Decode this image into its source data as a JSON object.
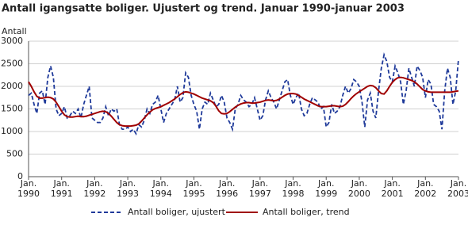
{
  "chart_data": {
    "type": "line",
    "title": "Antall igangsatte boliger. Ujustert og trend. Januar 1990-januar 2003",
    "y_label": "Antall",
    "categories": [
      "Jan. 1990",
      null,
      null,
      null,
      null,
      null,
      null,
      null,
      null,
      null,
      null,
      null,
      "Jan. 1991",
      null,
      null,
      null,
      null,
      null,
      null,
      null,
      null,
      null,
      null,
      null,
      "Jan. 1992",
      null,
      null,
      null,
      null,
      null,
      null,
      null,
      null,
      null,
      null,
      null,
      "Jan. 1993",
      null,
      null,
      null,
      null,
      null,
      null,
      null,
      null,
      null,
      null,
      null,
      "Jan. 1994",
      null,
      null,
      null,
      null,
      null,
      null,
      null,
      null,
      null,
      null,
      null,
      "Jan. 1995",
      null,
      null,
      null,
      null,
      null,
      null,
      null,
      null,
      null,
      null,
      null,
      "Jan. 1996",
      null,
      null,
      null,
      null,
      null,
      null,
      null,
      null,
      null,
      null,
      null,
      "Jan. 1997",
      null,
      null,
      null,
      null,
      null,
      null,
      null,
      null,
      null,
      null,
      null,
      "Jan. 1998",
      null,
      null,
      null,
      null,
      null,
      null,
      null,
      null,
      null,
      null,
      null,
      "Jan. 1999",
      null,
      null,
      null,
      null,
      null,
      null,
      null,
      null,
      null,
      null,
      null,
      "Jan. 2000",
      null,
      null,
      null,
      null,
      null,
      null,
      null,
      null,
      null,
      null,
      null,
      "Jan. 2001",
      null,
      null,
      null,
      null,
      null,
      null,
      null,
      null,
      null,
      null,
      null,
      "Jan. 2002",
      null,
      null,
      null,
      null,
      null,
      null,
      null,
      null,
      null,
      null,
      null,
      "Jan. 2003"
    ],
    "series": [
      {
        "name": "Antall boliger, ujustert",
        "color": "#1f3a9a",
        "dash": true,
        "values": [
          1800,
          1850,
          1600,
          1400,
          1850,
          1900,
          1600,
          2200,
          2450,
          2200,
          1500,
          1350,
          1400,
          1550,
          1300,
          1350,
          1450,
          1400,
          1500,
          1300,
          1600,
          1800,
          2000,
          1300,
          1250,
          1200,
          1200,
          1300,
          1550,
          1350,
          1500,
          1450,
          1500,
          1150,
          1050,
          1050,
          1100,
          1000,
          1050,
          950,
          1150,
          1100,
          1250,
          1500,
          1400,
          1600,
          1650,
          1800,
          1500,
          1200,
          1400,
          1500,
          1600,
          1700,
          2000,
          1650,
          1750,
          2300,
          2200,
          1800,
          1600,
          1450,
          1050,
          1500,
          1650,
          1600,
          1850,
          1700,
          1550,
          1600,
          1800,
          1650,
          1300,
          1200,
          1050,
          1500,
          1600,
          1800,
          1700,
          1650,
          1550,
          1600,
          1750,
          1500,
          1250,
          1350,
          1700,
          1900,
          1750,
          1650,
          1500,
          1700,
          1900,
          2100,
          2150,
          1800,
          1600,
          1750,
          1850,
          1500,
          1350,
          1400,
          1600,
          1750,
          1700,
          1650,
          1500,
          1550,
          1100,
          1200,
          1600,
          1400,
          1450,
          1550,
          1800,
          2000,
          1850,
          1950,
          2150,
          2100,
          2000,
          1650,
          1100,
          1700,
          1850,
          1450,
          1300,
          1900,
          2400,
          2700,
          2550,
          2200,
          2100,
          2450,
          2300,
          2100,
          1600,
          1900,
          2400,
          2200,
          2000,
          2450,
          2350,
          2200,
          1750,
          2150,
          2050,
          1600,
          1550,
          1450,
          1050,
          1900,
          2400,
          2200,
          1600,
          1900,
          2600
        ]
      },
      {
        "name": "Antall boliger, trend",
        "color": "#a00000",
        "dash": false,
        "values": [
          2100,
          2000,
          1880,
          1780,
          1740,
          1740,
          1750,
          1760,
          1750,
          1720,
          1650,
          1550,
          1450,
          1370,
          1330,
          1320,
          1320,
          1330,
          1340,
          1330,
          1330,
          1340,
          1360,
          1380,
          1400,
          1420,
          1440,
          1450,
          1440,
          1400,
          1340,
          1270,
          1200,
          1150,
          1130,
          1120,
          1120,
          1120,
          1130,
          1140,
          1170,
          1230,
          1300,
          1370,
          1430,
          1480,
          1510,
          1530,
          1550,
          1580,
          1610,
          1640,
          1680,
          1720,
          1770,
          1820,
          1860,
          1880,
          1870,
          1850,
          1830,
          1800,
          1770,
          1740,
          1720,
          1700,
          1680,
          1640,
          1560,
          1460,
          1400,
          1390,
          1400,
          1440,
          1490,
          1540,
          1580,
          1610,
          1630,
          1640,
          1640,
          1630,
          1630,
          1640,
          1650,
          1670,
          1690,
          1700,
          1690,
          1680,
          1690,
          1720,
          1760,
          1800,
          1830,
          1840,
          1840,
          1830,
          1800,
          1760,
          1720,
          1690,
          1660,
          1630,
          1600,
          1570,
          1550,
          1550,
          1550,
          1560,
          1570,
          1570,
          1560,
          1550,
          1560,
          1600,
          1660,
          1730,
          1790,
          1840,
          1880,
          1920,
          1960,
          2000,
          2020,
          2010,
          1970,
          1900,
          1840,
          1830,
          1900,
          2000,
          2090,
          2150,
          2190,
          2200,
          2190,
          2170,
          2150,
          2130,
          2100,
          2050,
          1990,
          1930,
          1900,
          1880,
          1870,
          1870,
          1870,
          1870,
          1870,
          1870,
          1870,
          1870,
          1880,
          1890,
          1900
        ]
      }
    ],
    "ylim": [
      0,
      3000
    ],
    "yticks": [
      0,
      500,
      1000,
      1500,
      2000,
      2500,
      3000
    ],
    "grid": true,
    "legend": "bottom"
  }
}
